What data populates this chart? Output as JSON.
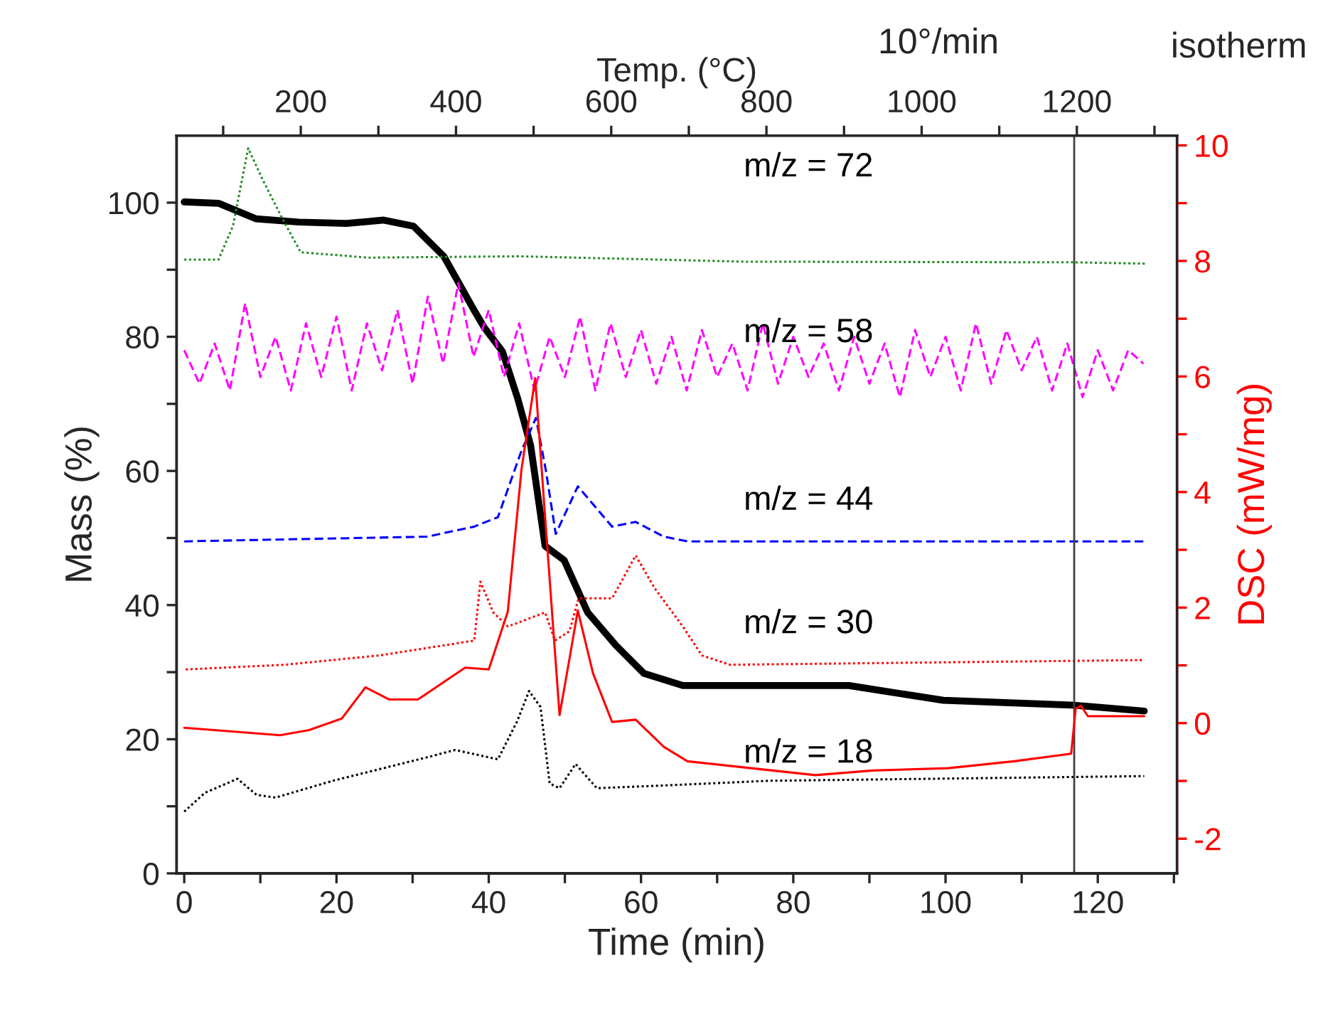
{
  "chart_data": {
    "type": "line",
    "xlabel": "Time (min)",
    "ylabel": "Mass (%)",
    "y2label": "DSC (mW/mg)",
    "x2label": "Temp. (°C)",
    "xlim": [
      -1,
      130.4
    ],
    "xticks": [
      0,
      {
        "value": 10,
        "label": null
      },
      20,
      {
        "value": 30,
        "label": null
      },
      40,
      {
        "value": 50,
        "label": null
      },
      60,
      {
        "value": 70,
        "label": null
      },
      80,
      {
        "value": 90,
        "label": null
      },
      100,
      {
        "value": 110,
        "label": null
      },
      120,
      {
        "value": 130,
        "label": null
      }
    ],
    "ylim": [
      0,
      110
    ],
    "yticks": [
      0,
      {
        "value": 10,
        "label": null
      },
      20,
      {
        "value": 30,
        "label": null
      },
      40,
      {
        "value": 50,
        "label": null
      },
      60,
      {
        "value": 70,
        "label": null
      },
      80,
      {
        "value": 90,
        "label": null
      },
      100
    ],
    "y2lim": [
      -2.6,
      10.17
    ],
    "y2ticks": [
      -2,
      {
        "value": -1,
        "label": null
      },
      0,
      {
        "value": 1,
        "label": null
      },
      2,
      {
        "value": 3,
        "label": null
      },
      4,
      {
        "value": 5,
        "label": null
      },
      6,
      {
        "value": 7,
        "label": null
      },
      8,
      {
        "value": 9,
        "label": null
      },
      10
    ],
    "x2lim": [
      40,
      1329
    ],
    "x2ticks": [
      {
        "value": 100,
        "label": null
      },
      200,
      {
        "value": 300,
        "label": null
      },
      400,
      {
        "value": 500,
        "label": null
      },
      600,
      {
        "value": 700,
        "label": null
      },
      800,
      {
        "value": 900,
        "label": null
      },
      1000,
      {
        "value": 1100,
        "label": null
      },
      1200,
      {
        "value": 1300,
        "label": null
      }
    ],
    "grid": false,
    "legend": false,
    "ref_lines": [
      {
        "axis": "x",
        "value": 116.9,
        "color": "#404040"
      }
    ],
    "annotations": [
      "10°/min",
      "isotherm"
    ],
    "series": [
      {
        "color": "#000000",
        "line_style": "solid",
        "x": [
          0,
          4.5,
          9.4,
          15,
          21.3,
          26.2,
          30.1,
          34.1,
          38,
          39.4,
          41.8,
          43.8,
          45.5,
          47.4,
          49.9,
          53,
          56.7,
          60.4,
          65.5,
          87.3,
          99.7,
          116.5,
          126.1
        ],
        "values": [
          100.1,
          99.9,
          97.6,
          97.1,
          96.9,
          97.4,
          96.5,
          92,
          84.1,
          81.4,
          77.8,
          70.8,
          63.8,
          48.8,
          46.7,
          38.9,
          34,
          29.8,
          28,
          28,
          25.8,
          25.1,
          24.2
        ]
      },
      {
        "color": "#ff0000",
        "line_style": "solid",
        "axis": "y2",
        "x": [
          0,
          12.6,
          16.4,
          20.7,
          23.8,
          26.9,
          30.7,
          36.9,
          40,
          42.5,
          44.3,
          46.1,
          47.4,
          49.3,
          50.6,
          51.7,
          53.7,
          56.2,
          59.3,
          63,
          66.1,
          71.7,
          82.9,
          90.4,
          100.3,
          109,
          116.5,
          117.1,
          117.8,
          118.7,
          126.1
        ],
        "values": [
          -0.08,
          -0.21,
          -0.12,
          0.08,
          0.62,
          0.41,
          0.41,
          0.96,
          0.93,
          1.93,
          4.39,
          5.97,
          3.57,
          0.14,
          1.11,
          1.95,
          0.86,
          0.02,
          0.06,
          -0.41,
          -0.66,
          -0.74,
          -0.9,
          -0.82,
          -0.78,
          -0.66,
          -0.53,
          0.25,
          0.3,
          0.12,
          0.12
        ]
      },
      {
        "name": "m/z = 72",
        "color": "#228b22",
        "line_style": "dotted",
        "x": [
          0,
          4.5,
          6.4,
          8.4,
          10.4,
          12.9,
          15.3,
          24.2,
          44,
          73.6,
          117,
          126.4
        ],
        "values": [
          91.5,
          91.5,
          96.5,
          108.1,
          103.2,
          97.6,
          92.6,
          91.8,
          92,
          91.2,
          91.1,
          90.9
        ]
      },
      {
        "name": "m/z = 58",
        "color": "#ff00ff",
        "line_style": "dashed",
        "x": [
          0,
          2,
          4,
          6,
          8,
          10,
          12,
          14,
          16,
          18,
          20,
          22,
          24,
          26,
          28,
          30,
          32,
          34,
          36,
          38,
          40,
          42,
          44,
          46,
          48,
          50,
          52,
          54,
          56,
          58,
          60,
          62,
          64,
          66,
          68,
          70,
          72,
          74,
          76,
          78,
          80,
          82,
          84,
          86,
          88,
          90,
          92,
          94,
          96,
          98,
          100,
          102,
          104,
          106,
          108,
          110,
          112,
          114,
          116,
          118,
          120,
          122,
          124,
          126
        ],
        "values": [
          78,
          73,
          79,
          72,
          85,
          74,
          80,
          72,
          82,
          74,
          83,
          72,
          82,
          75,
          84,
          73,
          86,
          76,
          88,
          77,
          84,
          74,
          82,
          72,
          80,
          74,
          83,
          72,
          82,
          74,
          81,
          73,
          80,
          72,
          81,
          74,
          79,
          72,
          82,
          73,
          80,
          74,
          79,
          72,
          80,
          73,
          79,
          71,
          81,
          74,
          80,
          72,
          82,
          73,
          81,
          75,
          80,
          72,
          79,
          71,
          78,
          72,
          78,
          76
        ]
      },
      {
        "name": "m/z = 44",
        "color": "#0000ff",
        "line_style": "dashed",
        "x": [
          0,
          31.9,
          38.1,
          41.2,
          44.3,
          46.2,
          47.5,
          48.8,
          51.7,
          56.2,
          59.3,
          63,
          66.1,
          126
        ],
        "values": [
          49.5,
          50.2,
          51.7,
          53.1,
          63,
          67.9,
          60.1,
          50.6,
          57.7,
          51.7,
          52.4,
          50.2,
          49.5,
          49.5
        ]
      },
      {
        "name": "m/z = 30",
        "color": "#ff0000",
        "line_style": "dotted",
        "x": [
          0.2,
          13.2,
          25.7,
          38.1,
          38.9,
          40.6,
          42.5,
          47.4,
          48.7,
          50.6,
          51.8,
          56.2,
          59.3,
          61.8,
          65.5,
          68,
          71.7,
          126
        ],
        "values": [
          30.4,
          31.1,
          32.5,
          34.7,
          43.5,
          38.9,
          36.8,
          38.9,
          34.7,
          36.1,
          41,
          41,
          47.4,
          42.5,
          36.8,
          32.5,
          31.1,
          31.8
        ]
      },
      {
        "name": "m/z = 18",
        "color": "#000000",
        "line_style": "dotted",
        "x": [
          0,
          2.7,
          7,
          9.5,
          12,
          19.5,
          31.9,
          35.6,
          41.2,
          43.7,
          45.3,
          46.8,
          48,
          49.3,
          51.4,
          54.2,
          63,
          76.7,
          126.1
        ],
        "values": [
          9.2,
          12,
          14.1,
          11.7,
          11.3,
          13.8,
          17.3,
          18.4,
          17,
          22.6,
          27.2,
          24.8,
          13.4,
          12.7,
          16.3,
          12.7,
          13.1,
          13.8,
          14.5
        ]
      }
    ]
  }
}
